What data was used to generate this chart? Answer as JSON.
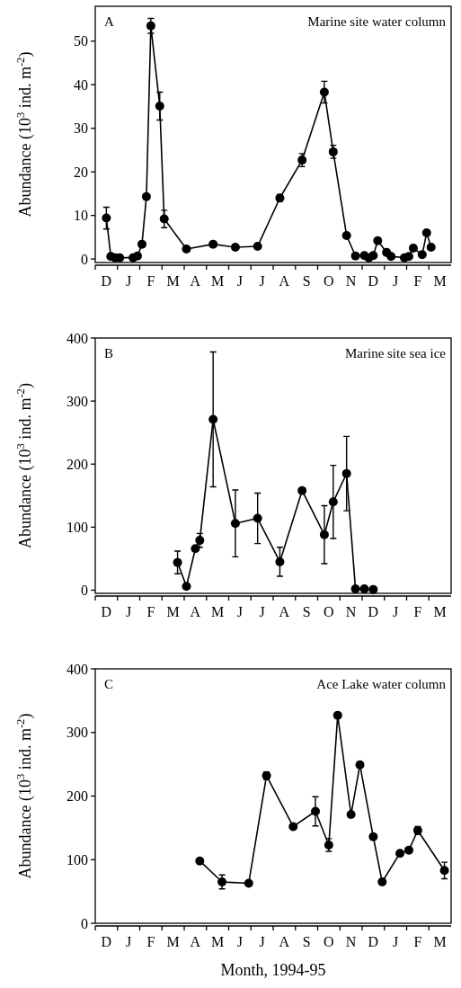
{
  "chart_data": [
    {
      "type": "line",
      "ylabel": "Abundance (10$^{3}$ ind. m$^{-2}$)",
      "annotations": [
        "A",
        "Marine site water column"
      ],
      "marker": "circle",
      "line_style": "solid",
      "ylim": [
        -0.8,
        58
      ],
      "yticks": [
        0,
        10,
        20,
        30,
        40,
        50
      ],
      "categories": [
        null,
        null,
        "D",
        null,
        null,
        null,
        null,
        "J",
        null,
        null,
        null,
        null,
        "F",
        null,
        null,
        null,
        null,
        "M",
        null,
        null,
        null,
        null,
        "A",
        null,
        null,
        null,
        null,
        "M",
        null,
        null,
        null,
        null,
        "J",
        null,
        null,
        null,
        null,
        "J",
        null,
        null,
        null,
        null,
        "A",
        null,
        null,
        null,
        null,
        "S",
        null,
        null,
        null,
        null,
        "O",
        null,
        null,
        null,
        null,
        "N",
        null,
        null,
        null,
        null,
        "D",
        null,
        null,
        null,
        null,
        "J",
        null,
        null,
        null,
        null,
        "F",
        null,
        null,
        null,
        null,
        "M",
        null,
        null
      ],
      "series": [
        {
          "color": "#000000",
          "values": [
            null,
            null,
            9.4,
            0.6,
            0.3,
            0.3,
            null,
            null,
            0.3,
            0.7,
            3.4,
            14.3,
            53.5,
            null,
            35.1,
            9.2,
            null,
            null,
            null,
            null,
            2.3,
            null,
            null,
            null,
            null,
            null,
            3.4,
            null,
            null,
            null,
            null,
            2.7,
            null,
            null,
            null,
            null,
            2.9,
            null,
            null,
            null,
            null,
            14.0,
            null,
            null,
            null,
            null,
            22.7,
            null,
            null,
            null,
            null,
            38.3,
            null,
            24.6,
            null,
            null,
            5.4,
            null,
            0.7,
            null,
            0.8,
            0.3,
            0.8,
            4.2,
            null,
            1.5,
            0.6,
            null,
            null,
            0.3,
            0.6,
            2.5,
            null,
            1.0,
            6.0,
            2.7,
            null,
            null,
            null,
            null
          ],
          "errors": [
            null,
            null,
            2.5,
            null,
            null,
            null,
            null,
            null,
            null,
            null,
            null,
            null,
            1.7,
            null,
            3.2,
            2,
            null,
            null,
            null,
            null,
            null,
            null,
            null,
            null,
            null,
            null,
            null,
            null,
            null,
            null,
            null,
            null,
            null,
            null,
            null,
            null,
            null,
            null,
            null,
            null,
            null,
            0.8,
            null,
            null,
            null,
            null,
            1.5,
            null,
            null,
            null,
            null,
            2.5,
            null,
            1.5,
            null,
            null,
            null,
            null,
            null,
            null,
            null,
            null,
            null,
            null,
            null,
            null,
            null,
            null,
            null,
            null,
            null,
            null,
            null,
            null,
            null,
            null,
            null,
            null,
            null,
            null
          ]
        }
      ]
    },
    {
      "type": "line",
      "ylabel": "Abundance (10$^{3}$ ind. m$^{-2}$)",
      "annotations": [
        "B",
        "Marine site sea ice"
      ],
      "marker": "circle",
      "line_style": "solid",
      "ylim": [
        -5,
        400
      ],
      "yticks": [
        0,
        100,
        200,
        300,
        400
      ],
      "categories": [
        null,
        null,
        "D",
        null,
        null,
        null,
        null,
        "J",
        null,
        null,
        null,
        null,
        "F",
        null,
        null,
        null,
        null,
        "M",
        null,
        null,
        null,
        null,
        "A",
        null,
        null,
        null,
        null,
        "M",
        null,
        null,
        null,
        null,
        "J",
        null,
        null,
        null,
        null,
        "J",
        null,
        null,
        null,
        null,
        "A",
        null,
        null,
        null,
        null,
        "S",
        null,
        null,
        null,
        null,
        "O",
        null,
        null,
        null,
        null,
        "N",
        null,
        null,
        null,
        null,
        "D",
        null,
        null,
        null,
        null,
        "J",
        null,
        null,
        null,
        null,
        "F",
        null,
        null,
        null,
        null,
        "M",
        null,
        null
      ],
      "series": [
        {
          "color": "#000000",
          "values": [
            null,
            null,
            null,
            null,
            null,
            null,
            null,
            null,
            null,
            null,
            null,
            null,
            null,
            null,
            null,
            null,
            null,
            null,
            44,
            null,
            6,
            null,
            66,
            79,
            null,
            null,
            271,
            null,
            null,
            null,
            null,
            106,
            null,
            null,
            null,
            null,
            114,
            null,
            null,
            null,
            null,
            45,
            null,
            null,
            null,
            null,
            158,
            null,
            null,
            null,
            null,
            88,
            null,
            140,
            null,
            null,
            185,
            null,
            2,
            null,
            2,
            null,
            1,
            null,
            null,
            null,
            null,
            null,
            null,
            null,
            null,
            null,
            null,
            null,
            null,
            null,
            null,
            null,
            null,
            null
          ],
          "errors": [
            null,
            null,
            null,
            null,
            null,
            null,
            null,
            null,
            null,
            null,
            null,
            null,
            null,
            null,
            null,
            null,
            null,
            null,
            18,
            null,
            null,
            null,
            null,
            11,
            null,
            null,
            107,
            null,
            null,
            null,
            null,
            53,
            null,
            null,
            null,
            null,
            40,
            null,
            null,
            null,
            null,
            23,
            null,
            null,
            null,
            null,
            null,
            null,
            null,
            null,
            null,
            46,
            null,
            58,
            null,
            null,
            59,
            null,
            null,
            null,
            null,
            null,
            null,
            null,
            null,
            null,
            null,
            null,
            null,
            null,
            null,
            null,
            null,
            null,
            null,
            null,
            null,
            null,
            null,
            null
          ]
        }
      ]
    },
    {
      "type": "line",
      "xlabel": "Month, 1994-95",
      "ylabel": "Abundance (10$^{3}$ ind. m$^{-2}$)",
      "annotations": [
        "C",
        "Ace Lake water column"
      ],
      "marker": "circle",
      "line_style": "solid",
      "ylim": [
        0,
        400
      ],
      "yticks": [
        0,
        100,
        200,
        300,
        400
      ],
      "categories": [
        null,
        null,
        "D",
        null,
        null,
        null,
        null,
        "J",
        null,
        null,
        null,
        null,
        "F",
        null,
        null,
        null,
        null,
        "M",
        null,
        null,
        null,
        null,
        "A",
        null,
        null,
        null,
        null,
        "M",
        null,
        null,
        null,
        null,
        "J",
        null,
        null,
        null,
        null,
        "J",
        null,
        null,
        null,
        null,
        "A",
        null,
        null,
        null,
        null,
        "S",
        null,
        null,
        null,
        null,
        "O",
        null,
        null,
        null,
        null,
        "N",
        null,
        null,
        null,
        null,
        "D",
        null,
        null,
        null,
        null,
        "J",
        null,
        null,
        null,
        null,
        "F",
        null,
        null,
        null,
        null,
        "M",
        null,
        null
      ],
      "series": [
        {
          "color": "#000000",
          "values": [
            null,
            null,
            null,
            null,
            null,
            null,
            null,
            null,
            null,
            null,
            null,
            null,
            null,
            null,
            null,
            null,
            null,
            null,
            null,
            null,
            null,
            null,
            null,
            98,
            null,
            null,
            null,
            null,
            65,
            null,
            null,
            null,
            null,
            null,
            63,
            null,
            null,
            null,
            232,
            null,
            null,
            null,
            null,
            null,
            152,
            null,
            null,
            null,
            null,
            176,
            null,
            null,
            123,
            null,
            327,
            null,
            null,
            171,
            null,
            249,
            null,
            null,
            136,
            null,
            65,
            null,
            null,
            null,
            110,
            null,
            115,
            null,
            146,
            null,
            null,
            null,
            null,
            null,
            83,
            null
          ],
          "errors": [
            null,
            null,
            null,
            null,
            null,
            null,
            null,
            null,
            null,
            null,
            null,
            null,
            null,
            null,
            null,
            null,
            null,
            null,
            null,
            null,
            null,
            null,
            null,
            null,
            null,
            null,
            null,
            null,
            11,
            null,
            null,
            null,
            null,
            null,
            null,
            null,
            null,
            null,
            6,
            null,
            null,
            null,
            null,
            null,
            4,
            null,
            null,
            null,
            null,
            23,
            null,
            null,
            10,
            null,
            null,
            null,
            null,
            null,
            null,
            null,
            null,
            null,
            null,
            null,
            null,
            null,
            null,
            null,
            null,
            null,
            null,
            null,
            6,
            null,
            null,
            null,
            null,
            null,
            13,
            null
          ]
        }
      ]
    }
  ]
}
